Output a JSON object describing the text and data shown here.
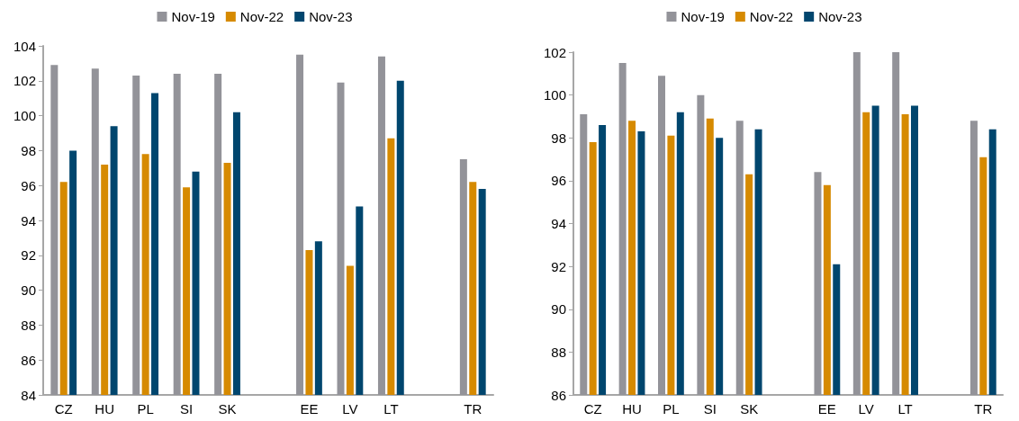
{
  "chart_data": [
    {
      "type": "bar",
      "categories": [
        "CZ",
        "HU",
        "PL",
        "SI",
        "SK",
        null,
        "EE",
        "LV",
        "LT",
        null,
        "TR"
      ],
      "series": [
        {
          "name": "Nov-19",
          "color": "#939399",
          "values": [
            102.9,
            102.7,
            102.3,
            102.4,
            102.4,
            null,
            103.5,
            101.9,
            103.4,
            null,
            97.5
          ]
        },
        {
          "name": "Nov-22",
          "color": "#d68a00",
          "values": [
            96.2,
            97.2,
            97.8,
            95.9,
            97.3,
            null,
            92.3,
            91.4,
            98.7,
            null,
            96.2
          ]
        },
        {
          "name": "Nov-23",
          "color": "#00466e",
          "values": [
            98.0,
            99.4,
            101.3,
            96.8,
            100.2,
            null,
            92.8,
            94.8,
            102.0,
            null,
            95.8
          ]
        }
      ],
      "ylim": [
        84,
        104
      ],
      "yticks": [
        84,
        86,
        88,
        90,
        92,
        94,
        96,
        98,
        100,
        102,
        104
      ],
      "grid": false,
      "legend": "top"
    },
    {
      "type": "bar",
      "categories": [
        "CZ",
        "HU",
        "PL",
        "SI",
        "SK",
        null,
        "EE",
        "LV",
        "LT",
        null,
        "TR"
      ],
      "series": [
        {
          "name": "Nov-19",
          "color": "#939399",
          "values": [
            99.1,
            101.5,
            100.9,
            100.0,
            98.8,
            null,
            96.4,
            102,
            102,
            null,
            98.8
          ]
        },
        {
          "name": "Nov-22",
          "color": "#d68a00",
          "values": [
            97.8,
            98.8,
            98.1,
            98.9,
            96.3,
            null,
            95.8,
            99.2,
            99.1,
            null,
            97.1
          ]
        },
        {
          "name": "Nov-23",
          "color": "#00466e",
          "values": [
            98.6,
            98.3,
            99.2,
            98.0,
            98.4,
            null,
            92.1,
            99.5,
            99.5,
            null,
            98.4
          ]
        }
      ],
      "ylim": [
        86,
        102
      ],
      "yticks": [
        86,
        88,
        90,
        92,
        94,
        96,
        98,
        100,
        102
      ],
      "grid": false,
      "legend": "top"
    }
  ]
}
